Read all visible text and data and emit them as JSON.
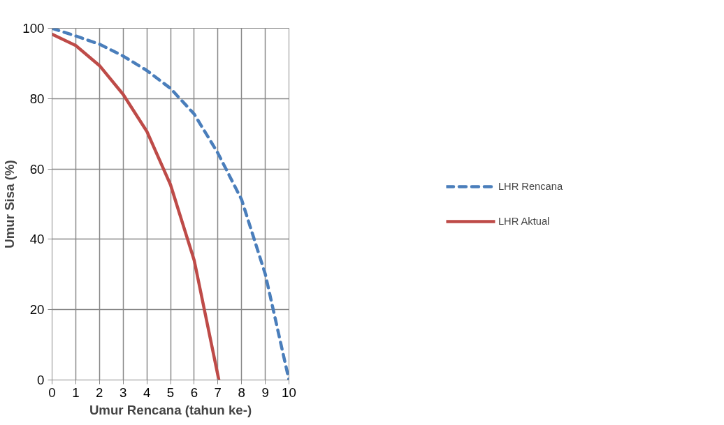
{
  "chart_data": {
    "type": "line",
    "xlabel": "Umur Rencana (tahun ke-)",
    "ylabel": "Umur Sisa (%)",
    "xlim": [
      0,
      10
    ],
    "xticks": [
      0,
      1,
      2,
      3,
      4,
      5,
      6,
      7,
      8,
      9,
      10
    ],
    "ylim": [
      0,
      100
    ],
    "yticks": [
      0,
      20,
      40,
      60,
      80,
      100
    ],
    "grid": true,
    "legend": "right",
    "series": [
      {
        "name": "LHR Rencana",
        "color": "#4a7ebb",
        "line_style": "dashed",
        "x": [
          0,
          1,
          2,
          3,
          4,
          5,
          6,
          7,
          8,
          9,
          10
        ],
        "values": [
          100,
          97.8,
          95.5,
          92.1,
          88,
          82.9,
          75.6,
          64.5,
          51.3,
          30.1,
          0
        ]
      },
      {
        "name": "LHR Aktual",
        "color": "#be4b48",
        "line_style": "solid",
        "x": [
          0,
          1,
          2,
          3,
          4,
          5,
          6,
          7.04
        ],
        "values": [
          98.3,
          95.1,
          89.4,
          81.2,
          70.7,
          55.5,
          34,
          0
        ]
      }
    ]
  }
}
